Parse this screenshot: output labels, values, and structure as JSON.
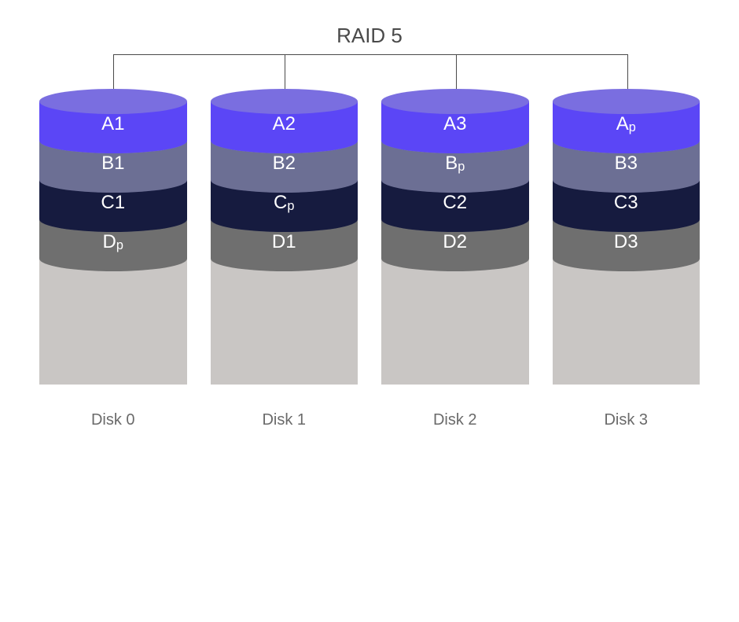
{
  "title": "RAID 5",
  "diagram": {
    "type": "raid-cylinder-diagram",
    "background": "#ffffff",
    "title_color": "#4a4a4a",
    "title_fontsize": 26,
    "label_color": "#6a6a6a",
    "label_fontsize": 20,
    "block_label_color": "#ffffff",
    "block_label_fontsize": 24,
    "bracket_color": "#4a4a4a",
    "disk_width": 188,
    "disk_gap": 30,
    "ellipse_ry": 16,
    "stripe_height": 50,
    "base_height": 160,
    "rows": [
      {
        "id": "A",
        "body": "#5b46f6",
        "cap": "#7a6ee0",
        "labels": [
          "A1",
          "A2",
          "A3",
          "A<sub>p</sub>"
        ]
      },
      {
        "id": "B",
        "body": "#6c6f94",
        "cap": "#9a9cb6",
        "labels": [
          "B1",
          "B2",
          "B<sub>p</sub>",
          "B3"
        ]
      },
      {
        "id": "C",
        "body": "#161b3f",
        "cap": "#2d3157",
        "labels": [
          "C1",
          "C<sub>p</sub>",
          "C2",
          "C3"
        ]
      },
      {
        "id": "D",
        "body": "#6f6f6f",
        "cap": "#8a8a8a",
        "labels": [
          "D<sub>p</sub>",
          "D1",
          "D2",
          "D3"
        ]
      }
    ],
    "base": {
      "body": "#c9c6c4",
      "cap": "#e3e0dd"
    },
    "disks": [
      "Disk 0",
      "Disk 1",
      "Disk 2",
      "Disk 3"
    ]
  }
}
